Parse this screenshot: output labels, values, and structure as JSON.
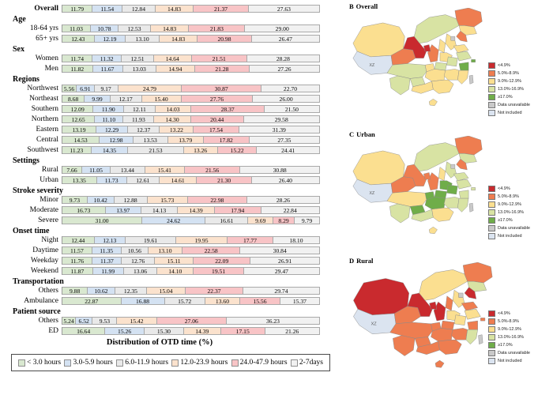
{
  "figure": {
    "axis_title": "Distribution of OTD time (%)",
    "bar_palette": [
      "#d9e8d0",
      "#d4e2f2",
      "#e9e9e9",
      "#fbe2cd",
      "#f8c4c6",
      "#f1f1f1"
    ],
    "legend": [
      {
        "label": "< 3.0 hours",
        "color": "#d9e8d0"
      },
      {
        "label": "3.0-5.9 hours",
        "color": "#d4e2f2"
      },
      {
        "label": "6.0-11.9 hours",
        "color": "#e9e9e9"
      },
      {
        "label": "12.0-23.9 hours",
        "color": "#fbe2cd"
      },
      {
        "label": "24.0-47.9 hours",
        "color": "#f8c4c6"
      },
      {
        "label": "2-7days",
        "color": "#f1f1f1"
      }
    ]
  },
  "chart_data": {
    "type": "bar",
    "orientation": "horizontal",
    "stacked": true,
    "unit": "%",
    "xlim": [
      0,
      100
    ],
    "xlabel": "Distribution of OTD time (%)",
    "series_labels": [
      "< 3.0 hours",
      "3.0-5.9 hours",
      "6.0-11.9 hours",
      "12.0-23.9 hours",
      "24.0-47.9 hours",
      "2-7days"
    ],
    "groups": [
      {
        "header": null,
        "rows": [
          {
            "label": "Overall",
            "bold": true,
            "values": [
              11.79,
              11.54,
              12.84,
              14.83,
              21.37,
              27.63
            ]
          }
        ]
      },
      {
        "header": "Age",
        "rows": [
          {
            "label": "18-64 yrs",
            "values": [
              11.03,
              10.78,
              12.53,
              14.83,
              21.83,
              29.0
            ]
          },
          {
            "label": "65+ yrs",
            "values": [
              12.43,
              12.19,
              13.1,
              14.83,
              20.98,
              26.47
            ]
          }
        ]
      },
      {
        "header": "Sex",
        "rows": [
          {
            "label": "Women",
            "values": [
              11.74,
              11.32,
              12.51,
              14.64,
              21.51,
              28.28
            ]
          },
          {
            "label": "Men",
            "values": [
              11.82,
              11.67,
              13.03,
              14.94,
              21.28,
              27.26
            ]
          }
        ]
      },
      {
        "header": "Regions",
        "rows": [
          {
            "label": "Northwest",
            "values": [
              5.56,
              6.91,
              9.17,
              24.79,
              30.87,
              22.7
            ]
          },
          {
            "label": "Northeast",
            "values": [
              8.68,
              9.99,
              12.17,
              15.4,
              27.76,
              26.0
            ]
          },
          {
            "label": "Southern",
            "values": [
              12.09,
              11.9,
              12.11,
              14.03,
              28.37,
              21.5
            ]
          },
          {
            "label": "Northern",
            "values": [
              12.65,
              11.1,
              11.93,
              14.3,
              20.44,
              29.58
            ]
          },
          {
            "label": "Eastern",
            "values": [
              13.19,
              12.29,
              12.37,
              13.22,
              17.54,
              31.39
            ]
          },
          {
            "label": "Central",
            "values": [
              14.53,
              12.98,
              13.53,
              13.79,
              17.82,
              27.35
            ]
          },
          {
            "label": "Southwest",
            "values": [
              11.23,
              14.35,
              21.53,
              13.26,
              15.22,
              24.41
            ]
          }
        ]
      },
      {
        "header": "Settings",
        "rows": [
          {
            "label": "Rural",
            "values": [
              7.66,
              11.05,
              13.44,
              15.41,
              21.56,
              30.88
            ]
          },
          {
            "label": "Urban",
            "values": [
              13.35,
              11.73,
              12.61,
              14.61,
              21.3,
              26.4
            ]
          }
        ]
      },
      {
        "header": "Stroke severity",
        "rows": [
          {
            "label": "Minor",
            "values": [
              9.73,
              10.42,
              12.88,
              15.73,
              22.98,
              28.26
            ]
          },
          {
            "label": "Moderate",
            "values": [
              16.73,
              13.97,
              14.13,
              14.39,
              17.94,
              22.84
            ]
          },
          {
            "label": "Severe",
            "values": [
              31.0,
              24.62,
              16.61,
              9.69,
              8.29,
              9.79
            ]
          }
        ]
      },
      {
        "header": "Onset time",
        "rows": [
          {
            "label": "Night",
            "values": [
              12.44,
              12.13,
              19.61,
              19.95,
              17.77,
              18.1
            ]
          },
          {
            "label": "Daytime",
            "values": [
              11.57,
              11.35,
              10.56,
              13.1,
              22.58,
              30.84
            ]
          },
          {
            "label": "Weekday",
            "values": [
              11.76,
              11.37,
              12.76,
              15.11,
              22.09,
              26.91
            ]
          },
          {
            "label": "Weekend",
            "values": [
              11.87,
              11.99,
              13.06,
              14.1,
              19.51,
              29.47
            ]
          }
        ]
      },
      {
        "header": "Transportation",
        "rows": [
          {
            "label": "Others",
            "values": [
              9.88,
              10.62,
              12.35,
              15.04,
              22.37,
              29.74
            ]
          },
          {
            "label": "Ambulance",
            "values": [
              22.87,
              16.88,
              15.72,
              13.6,
              15.56,
              15.37
            ]
          }
        ]
      },
      {
        "header": "Patient source",
        "rows": [
          {
            "label": "Others",
            "values": [
              5.24,
              6.52,
              9.53,
              15.42,
              27.06,
              36.23
            ]
          },
          {
            "label": "ED",
            "values": [
              16.64,
              15.26,
              15.3,
              14.39,
              17.15,
              21.26
            ]
          }
        ]
      }
    ]
  },
  "maps": {
    "palette": [
      "#c92a2e",
      "#ee7d50",
      "#fbdf90",
      "#d8e3a3",
      "#6fad49",
      "#c9c9c9",
      "#dbe4f0"
    ],
    "legend": [
      {
        "label": "<4.9%",
        "color": "#c92a2e"
      },
      {
        "label": "5.0%-8.9%",
        "color": "#ee7d50"
      },
      {
        "label": "9.0%-12.9%",
        "color": "#fbdf90"
      },
      {
        "label": "13.0%-16.9%",
        "color": "#d8e3a3"
      },
      {
        "label": "≥17.0%",
        "color": "#6fad49"
      },
      {
        "label": "Data unavailable",
        "color": "#c9c9c9"
      },
      {
        "label": "Not included",
        "color": "#dbe4f0"
      }
    ],
    "visible_region_label": "XZ",
    "panels": [
      {
        "letter": "B",
        "title": "Overall",
        "region_categories": {
          "XJ": 2,
          "XZ": 6,
          "QH": 1,
          "GS": 0,
          "NM": 3,
          "HL": 1,
          "JL": 2,
          "LN": 1,
          "BJ": 5,
          "HE": 2,
          "SX": 2,
          "SD": 2,
          "SN": 1,
          "NX": 0,
          "HA": 2,
          "JS": 3,
          "AH": 3,
          "SH": 4,
          "ZJ": 4,
          "HB": 3,
          "CQ": 2,
          "SC": 3,
          "YN": 3,
          "GZ": 3,
          "HN": 2,
          "JX": 2,
          "FJ": 2,
          "GX": 2,
          "GD": 2,
          "HI": 2,
          "TW": 5
        }
      },
      {
        "letter": "C",
        "title": "Urban",
        "region_categories": {
          "XJ": 2,
          "XZ": 6,
          "QH": 1,
          "GS": 1,
          "NM": 3,
          "HL": 1,
          "JL": 3,
          "LN": 1,
          "BJ": 5,
          "HE": 3,
          "SX": 2,
          "SD": 3,
          "SN": 1,
          "NX": 1,
          "HA": 4,
          "JS": 3,
          "AH": 4,
          "SH": 3,
          "ZJ": 3,
          "HB": 4,
          "CQ": 4,
          "SC": 2,
          "YN": 3,
          "GZ": 4,
          "HN": 4,
          "JX": 3,
          "FJ": 3,
          "GX": 3,
          "GD": 2,
          "HI": 2,
          "TW": 5
        }
      },
      {
        "letter": "D",
        "title": "Rural",
        "region_categories": {
          "XJ": 0,
          "XZ": 6,
          "QH": 1,
          "GS": 0,
          "NM": 2,
          "HL": 1,
          "JL": 3,
          "LN": 0,
          "BJ": 5,
          "HE": 2,
          "SX": 1,
          "SD": 1,
          "SN": 0,
          "NX": 0,
          "HA": 2,
          "JS": 2,
          "AH": 2,
          "SH": 1,
          "ZJ": 1,
          "HB": 1,
          "CQ": 1,
          "SC": 1,
          "YN": 1,
          "GZ": 1,
          "HN": 1,
          "JX": 1,
          "FJ": 3,
          "GX": 1,
          "GD": 1,
          "HI": 1,
          "TW": 5
        }
      }
    ]
  }
}
